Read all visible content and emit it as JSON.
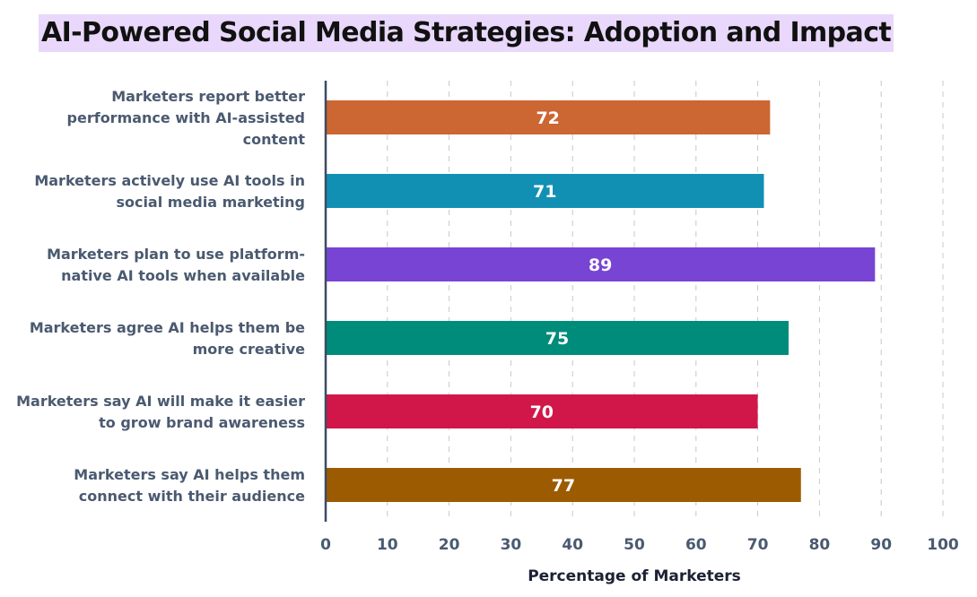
{
  "chart_data": {
    "type": "bar",
    "orientation": "horizontal",
    "title": "AI-Powered Social Media Strategies: Adoption and Impact",
    "xlabel": "Percentage of Marketers",
    "ylabel": "",
    "xlim": [
      0,
      100
    ],
    "xticks": [
      0,
      10,
      20,
      30,
      40,
      50,
      60,
      70,
      80,
      90,
      100
    ],
    "grid": "vertical dashed",
    "categories": [
      [
        "Marketers report better",
        "performance with AI-assisted",
        "content"
      ],
      [
        "Marketers actively use AI tools in",
        "social media marketing"
      ],
      [
        "Marketers plan to use platform-",
        "native AI tools when available"
      ],
      [
        "Marketers agree AI helps them be",
        "more creative"
      ],
      [
        "Marketers say AI will make it easier",
        "to grow brand awareness"
      ],
      [
        "Marketers say AI helps them",
        "connect with their audience"
      ]
    ],
    "values": [
      72,
      71,
      89,
      75,
      70,
      77
    ],
    "colors": [
      "#cc6633",
      "#1190b4",
      "#7744d4",
      "#008c7a",
      "#d1174a",
      "#9c5b00"
    ],
    "title_highlight": "#e9d8fb"
  }
}
